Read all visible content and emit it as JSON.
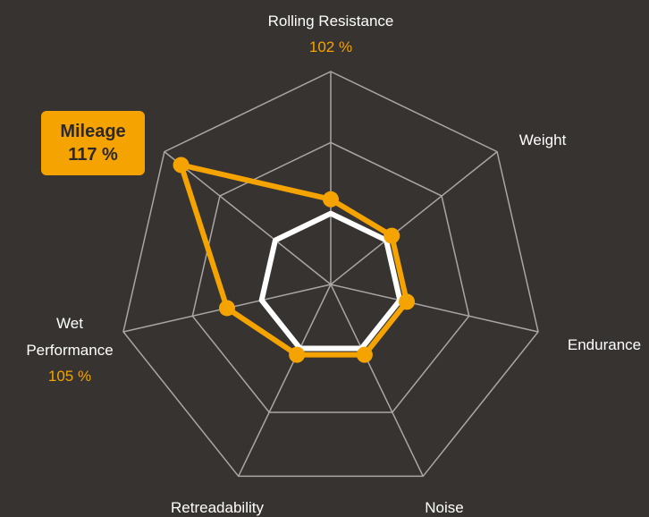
{
  "chart_data": {
    "type": "radar",
    "categories": [
      "Rolling Resistance",
      "Weight",
      "Endurance",
      "Noise",
      "Retreadability",
      "Wet Performance",
      "Mileage"
    ],
    "series": [
      {
        "color": "#ffffff",
        "values": [
          100,
          100,
          100,
          100,
          100,
          100,
          100
        ]
      },
      {
        "color": "#f5a300",
        "values": [
          102,
          101,
          101,
          101,
          101,
          105,
          117
        ],
        "value_labels": [
          "102 %",
          null,
          null,
          null,
          null,
          "105 %",
          "117 %"
        ]
      }
    ],
    "ylim": [
      90,
      120
    ],
    "yticks": [
      100,
      110,
      120
    ],
    "grid": true,
    "grid_color": "#a9a7a5"
  }
}
